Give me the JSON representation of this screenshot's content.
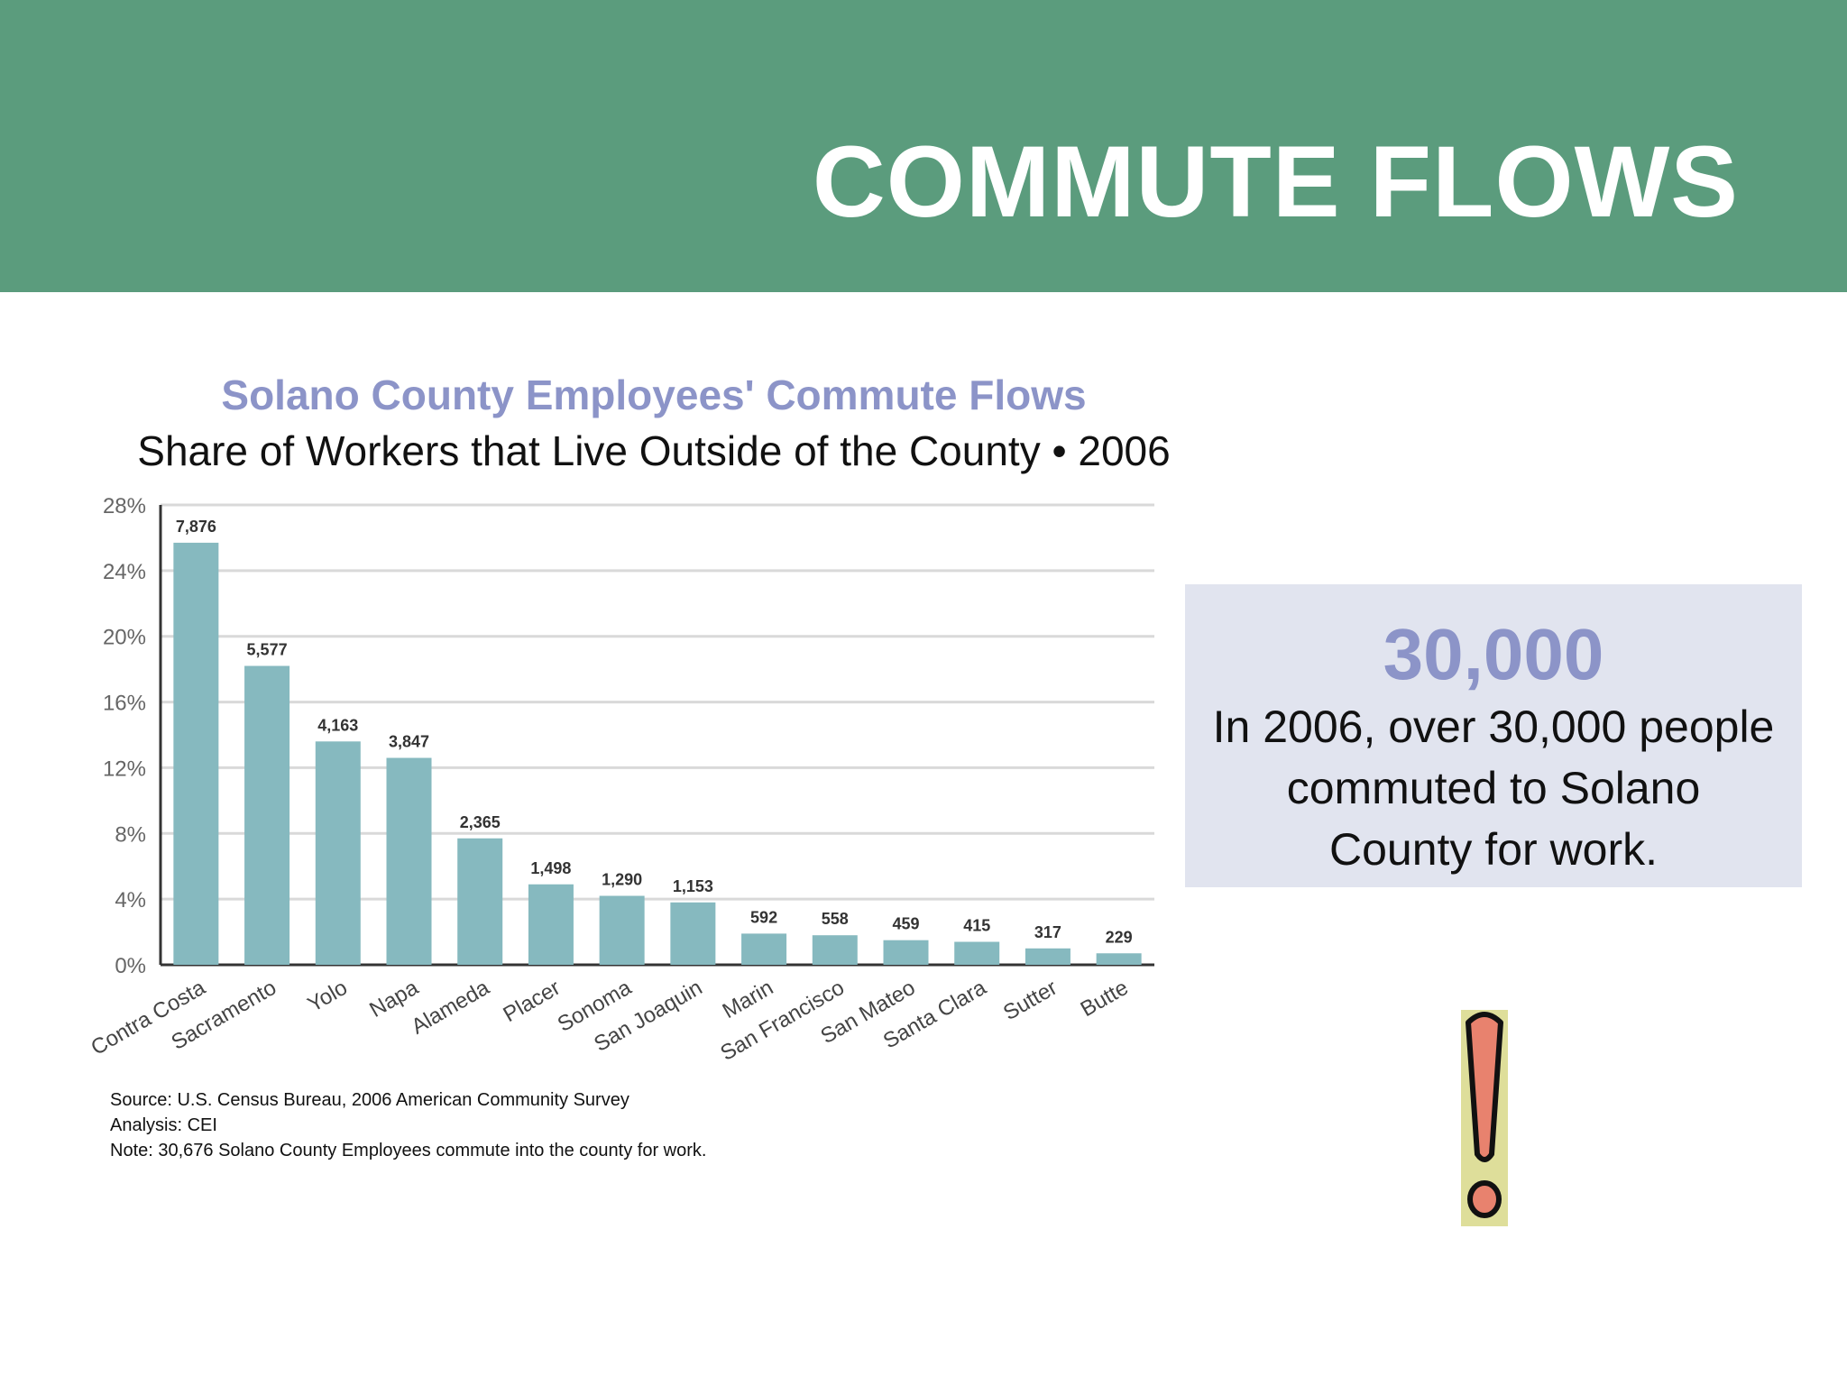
{
  "header": {
    "title": "COMMUTE FLOWS"
  },
  "chart_data": {
    "type": "bar",
    "title": "Solano County Employees' Commute Flows",
    "subtitle": "Share of Workers that Live Outside of the County • 2006",
    "categories": [
      "Contra Costa",
      "Sacramento",
      "Yolo",
      "Napa",
      "Alameda",
      "Placer",
      "Sonoma",
      "San Joaquin",
      "Marin",
      "San Francisco",
      "San Mateo",
      "Santa Clara",
      "Sutter",
      "Butte"
    ],
    "values": [
      25.7,
      18.2,
      13.6,
      12.6,
      7.7,
      4.9,
      4.2,
      3.8,
      1.9,
      1.8,
      1.5,
      1.4,
      1.0,
      0.7
    ],
    "data_labels": [
      "7,876",
      "5,577",
      "4,163",
      "3,847",
      "2,365",
      "1,498",
      "1,290",
      "1,153",
      "592",
      "558",
      "459",
      "415",
      "317",
      "229"
    ],
    "y_ticks": [
      "0%",
      "4%",
      "8%",
      "12%",
      "16%",
      "20%",
      "24%",
      "28%"
    ],
    "ylim": [
      0,
      28
    ],
    "grid": true,
    "bar_color": "#86b9bf",
    "xlabel": "",
    "ylabel": ""
  },
  "notes": {
    "source": "Source: U.S. Census Bureau, 2006 American Community Survey",
    "analysis": "Analysis: CEI",
    "note": "Note: 30,676 Solano County Employees commute into the county for work."
  },
  "callout": {
    "number": "30,000",
    "text": "In 2006, over 30,000 people commuted to Solano County for work."
  },
  "colors": {
    "header_bg": "#5b9c7d",
    "title_accent": "#8c94c8",
    "callout_bg": "#e1e4ef",
    "exclaim_fill": "#e8826e"
  }
}
